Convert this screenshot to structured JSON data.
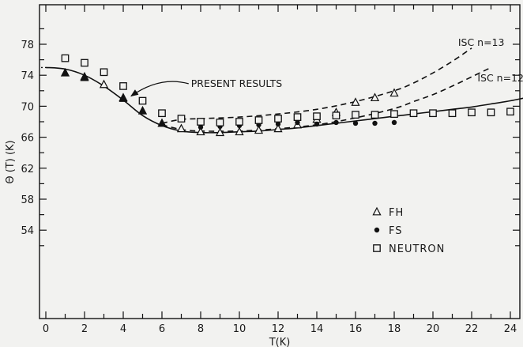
{
  "chart_data": {
    "type": "scatter",
    "xlabel": "T(K)",
    "ylabel": "Θ (T)  (K)",
    "xlim": [
      0,
      25
    ],
    "ylim": [
      50,
      82
    ],
    "xticks": [
      0,
      2,
      4,
      6,
      8,
      10,
      12,
      14,
      16,
      18,
      20,
      22,
      24
    ],
    "yticks": [
      54,
      58,
      62,
      66,
      70,
      74,
      78
    ],
    "grid": false,
    "legend_position": "lower-right",
    "series": [
      {
        "name": "FH",
        "marker": "open-triangle",
        "points": [
          [
            1,
            74.3
          ],
          [
            2,
            73.8
          ],
          [
            3,
            72.8
          ],
          [
            4,
            71.1
          ],
          [
            5,
            69.4
          ],
          [
            6,
            67.8
          ],
          [
            7,
            67.1
          ],
          [
            8,
            66.7
          ],
          [
            9,
            66.6
          ],
          [
            10,
            66.7
          ],
          [
            11,
            66.9
          ],
          [
            12,
            67.1
          ],
          [
            13,
            67.6
          ],
          [
            14,
            68.3
          ],
          [
            15,
            69.2
          ],
          [
            16,
            70.5
          ],
          [
            17,
            71.1
          ],
          [
            18,
            71.7
          ]
        ]
      },
      {
        "name": "FS",
        "marker": "filled-circle",
        "points": [
          [
            8,
            67.3
          ],
          [
            9,
            67.4
          ],
          [
            10,
            67.5
          ],
          [
            11,
            67.6
          ],
          [
            12,
            67.7
          ],
          [
            13,
            67.9
          ],
          [
            14,
            67.7
          ],
          [
            15,
            67.9
          ],
          [
            16,
            67.8
          ],
          [
            17,
            67.8
          ],
          [
            18,
            67.9
          ]
        ]
      },
      {
        "name": "NEUTRON",
        "marker": "open-square",
        "points": [
          [
            1,
            76.2
          ],
          [
            2,
            75.6
          ],
          [
            3,
            74.4
          ],
          [
            4,
            72.6
          ],
          [
            5,
            70.7
          ],
          [
            6,
            69.1
          ],
          [
            7,
            68.4
          ],
          [
            8,
            68.0
          ],
          [
            9,
            67.9
          ],
          [
            10,
            68.0
          ],
          [
            11,
            68.2
          ],
          [
            12,
            68.4
          ],
          [
            13,
            68.6
          ],
          [
            14,
            68.7
          ],
          [
            15,
            68.8
          ],
          [
            16,
            68.9
          ],
          [
            17,
            68.9
          ],
          [
            18,
            69.0
          ],
          [
            19,
            69.1
          ],
          [
            20,
            69.1
          ],
          [
            21,
            69.1
          ],
          [
            22,
            69.2
          ],
          [
            23,
            69.2
          ],
          [
            24,
            69.3
          ]
        ]
      },
      {
        "name": "filled-triangle",
        "marker": "filled-triangle",
        "points": [
          [
            1,
            74.3
          ],
          [
            2,
            73.7
          ],
          [
            4,
            71.0
          ],
          [
            5,
            69.4
          ],
          [
            6,
            67.8
          ]
        ]
      }
    ],
    "curves": [
      {
        "label": "PRESENT RESULTS",
        "style": "solid",
        "points": [
          [
            0,
            75.0
          ],
          [
            1,
            74.8
          ],
          [
            2,
            74.0
          ],
          [
            3,
            72.6
          ],
          [
            4,
            70.8
          ],
          [
            5,
            68.8
          ],
          [
            6,
            67.5
          ],
          [
            7,
            66.8
          ],
          [
            8,
            66.6
          ],
          [
            9,
            66.6
          ],
          [
            10,
            66.7
          ],
          [
            11,
            66.8
          ],
          [
            12,
            67.0
          ],
          [
            13,
            67.2
          ],
          [
            14,
            67.5
          ],
          [
            15,
            67.8
          ],
          [
            16,
            68.1
          ],
          [
            17,
            68.4
          ],
          [
            18,
            68.7
          ],
          [
            19,
            69.0
          ],
          [
            20,
            69.3
          ],
          [
            21,
            69.6
          ],
          [
            22,
            69.9
          ],
          [
            23,
            70.3
          ],
          [
            24,
            70.7
          ],
          [
            24.8,
            71.1
          ]
        ]
      },
      {
        "label": "ISC  n=12",
        "style": "dashed",
        "points": [
          [
            6,
            67.6
          ],
          [
            7,
            67.0
          ],
          [
            8,
            66.8
          ],
          [
            10,
            66.8
          ],
          [
            12,
            67.1
          ],
          [
            14,
            67.6
          ],
          [
            16,
            68.5
          ],
          [
            18,
            69.7
          ],
          [
            19,
            70.6
          ],
          [
            20,
            71.5
          ],
          [
            21,
            72.6
          ],
          [
            22,
            73.8
          ],
          [
            23,
            75.0
          ]
        ]
      },
      {
        "label": "ISC  n=13",
        "style": "dashed",
        "points": [
          [
            6,
            67.8
          ],
          [
            7,
            68.3
          ],
          [
            8,
            68.4
          ],
          [
            10,
            68.6
          ],
          [
            12,
            69.0
          ],
          [
            14,
            69.6
          ],
          [
            16,
            70.6
          ],
          [
            18,
            72.0
          ],
          [
            19,
            73.0
          ],
          [
            20,
            74.3
          ],
          [
            21,
            75.8
          ],
          [
            22,
            77.5
          ]
        ]
      }
    ],
    "annotations": [
      {
        "text": "PRESENT RESULTS",
        "x": 7.5,
        "y": 72.5,
        "arrow_to": [
          4.2,
          71.0
        ]
      },
      {
        "text": "ISC  n=13",
        "x": 21.3,
        "y": 77.8
      },
      {
        "text": "ISC  n=12",
        "x": 22.3,
        "y": 73.2
      }
    ]
  }
}
